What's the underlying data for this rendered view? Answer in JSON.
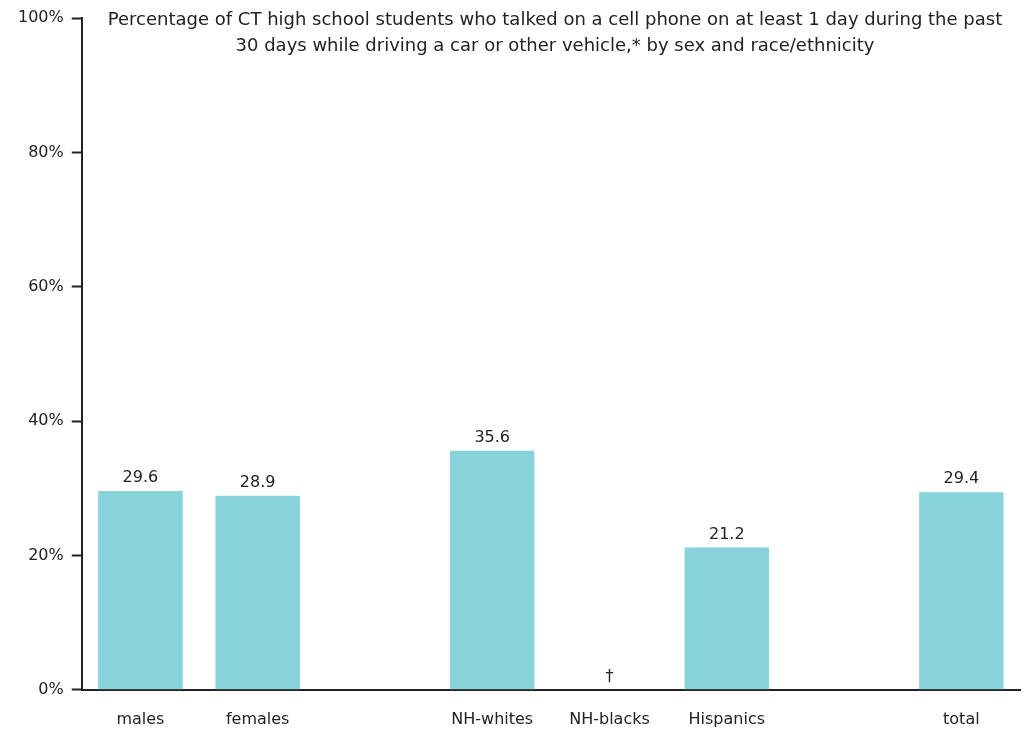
{
  "chart_data": {
    "type": "bar",
    "title": "Percentage of CT high school students who talked on a cell phone on at least 1 day during the past 30 days while driving a car or other vehicle,* by sex and race/ethnicity",
    "categories": [
      "males",
      "females",
      null,
      "NH-whites",
      "NH-blacks",
      "Hispanics",
      null,
      "total"
    ],
    "values": [
      29.6,
      28.9,
      null,
      35.6,
      null,
      21.2,
      null,
      29.4
    ],
    "value_labels": [
      "29.6",
      "28.9",
      null,
      "35.6",
      "†",
      "21.2",
      null,
      "29.4"
    ],
    "color": "#86d3da",
    "ylim": [
      0,
      100
    ],
    "yticks": [
      {
        "value": 0,
        "label": "0%"
      },
      {
        "value": 20,
        "label": "20%"
      },
      {
        "value": 40,
        "label": "40%"
      },
      {
        "value": 60,
        "label": "60%"
      },
      {
        "value": 80,
        "label": "80%"
      },
      {
        "value": 100,
        "label": "100%"
      }
    ]
  }
}
